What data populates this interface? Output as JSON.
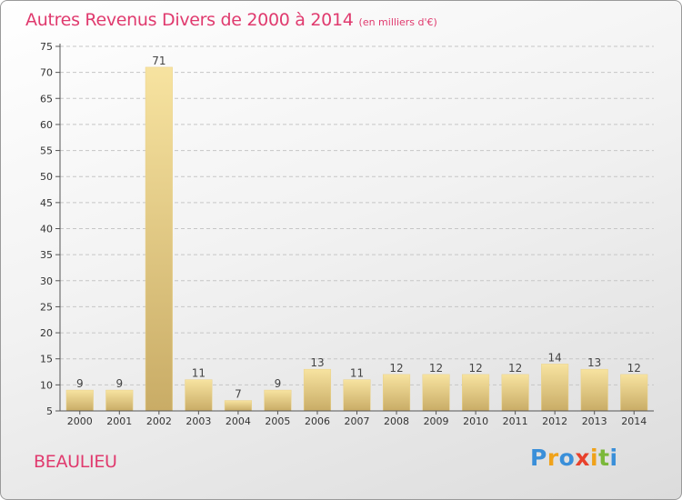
{
  "header": {
    "title": "Autres Revenus Divers de 2000 à 2014",
    "unit": "(en milliers d'€)"
  },
  "footer": {
    "location": "BEAULIEU"
  },
  "logo": {
    "letters": [
      "P",
      "r",
      "o",
      "x",
      "i",
      "t",
      "i"
    ],
    "colors": [
      "#3a8fd9",
      "#f0a21a",
      "#3a8fd9",
      "#e8412c",
      "#f0a21a",
      "#7bb83a",
      "#3a8fd9"
    ]
  },
  "chart_data": {
    "type": "bar",
    "categories": [
      "2000",
      "2001",
      "2002",
      "2003",
      "2004",
      "2005",
      "2006",
      "2007",
      "2008",
      "2009",
      "2010",
      "2011",
      "2012",
      "2013",
      "2014"
    ],
    "values": [
      9,
      9,
      71,
      11,
      7,
      9,
      13,
      11,
      12,
      12,
      12,
      12,
      14,
      13,
      12
    ],
    "ylim": [
      5,
      75
    ],
    "yticks": [
      5,
      10,
      15,
      20,
      25,
      30,
      35,
      40,
      45,
      50,
      55,
      60,
      65,
      70,
      75
    ],
    "grid": "horizontal dashed",
    "colors": {
      "bar_light": "#f7e3a0",
      "bar_dark": "#c9ac66",
      "grid": "#c6c6c6",
      "axis": "#555555"
    }
  }
}
